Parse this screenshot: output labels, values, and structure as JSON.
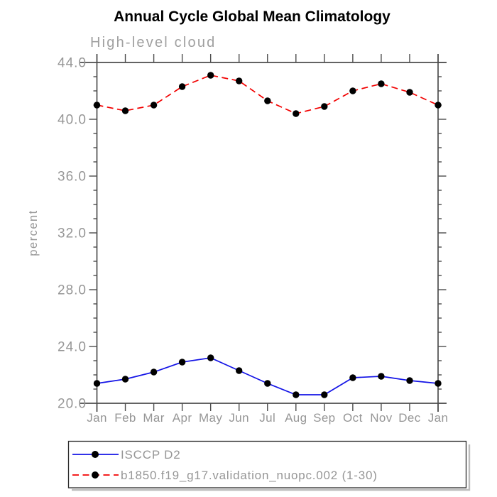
{
  "page": {
    "title": "Annual Cycle Global Mean Climatology",
    "subtitle": "High-level cloud"
  },
  "colors": {
    "obs_line": "#1414e6",
    "model_line": "#f20000",
    "marker": "#000000",
    "axis_line": "#4d4d4d",
    "gray_text": "#969696",
    "legend_border": "#2b2b2b",
    "legend_shadow": "#bdbdbd"
  },
  "chart_data": {
    "type": "line",
    "title": "Annual Cycle Global Mean Climatology",
    "subtitle": "High-level cloud",
    "xlabel": "",
    "ylabel": "percent",
    "categories": [
      "Jan",
      "Feb",
      "Mar",
      "Apr",
      "May",
      "Jun",
      "Jul",
      "Aug",
      "Sep",
      "Oct",
      "Nov",
      "Dec",
      "Jan"
    ],
    "ylim": [
      20.0,
      44.0
    ],
    "ytick_minor_step": 1.0,
    "yticks": [
      {
        "label": "44.0",
        "value": 44.0
      },
      {
        "label": "40.0",
        "value": 40.0
      },
      {
        "label": "36.0",
        "value": 36.0
      },
      {
        "label": "32.0",
        "value": 32.0
      },
      {
        "label": "28.0",
        "value": 28.0
      },
      {
        "label": "24.0",
        "value": 24.0
      },
      {
        "label": "20.0",
        "value": 20.0
      }
    ],
    "grid": false,
    "legend_position": "bottom-left-box",
    "series": [
      {
        "name": "ISCCP D2",
        "color": "#1414e6",
        "style": "solid",
        "marker": "filled-circle",
        "marker_color": "#000000",
        "values": [
          21.4,
          21.7,
          22.2,
          22.9,
          23.2,
          22.3,
          21.4,
          20.6,
          20.6,
          21.8,
          21.9,
          21.6,
          21.4
        ]
      },
      {
        "name": "b1850.f19_g17.validation_nuopc.002 (1-30)",
        "color": "#f20000",
        "style": "dashed",
        "marker": "filled-circle",
        "marker_color": "#000000",
        "values": [
          41.0,
          40.6,
          41.0,
          42.3,
          43.1,
          42.7,
          41.3,
          40.4,
          40.9,
          42.0,
          42.5,
          41.9,
          41.0
        ]
      }
    ]
  }
}
